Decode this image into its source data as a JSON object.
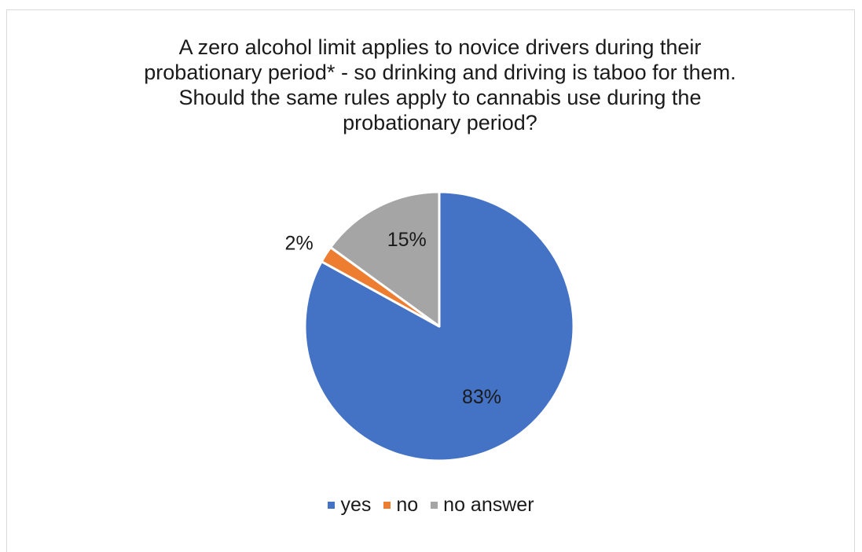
{
  "chart_data": {
    "type": "pie",
    "title": "A zero alcohol limit applies to novice drivers during their probationary period* - so drinking and driving is taboo for them. Should the same rules apply to cannabis use during the probationary period?",
    "categories": [
      "yes",
      "no",
      "no answer"
    ],
    "values": [
      83,
      2,
      15
    ],
    "data_labels": [
      "83%",
      "2%",
      "15%"
    ],
    "colors": [
      "#4472C4",
      "#ED7D31",
      "#A5A5A5"
    ],
    "legend_position": "bottom",
    "start_angle": "12 o'clock, clockwise"
  }
}
